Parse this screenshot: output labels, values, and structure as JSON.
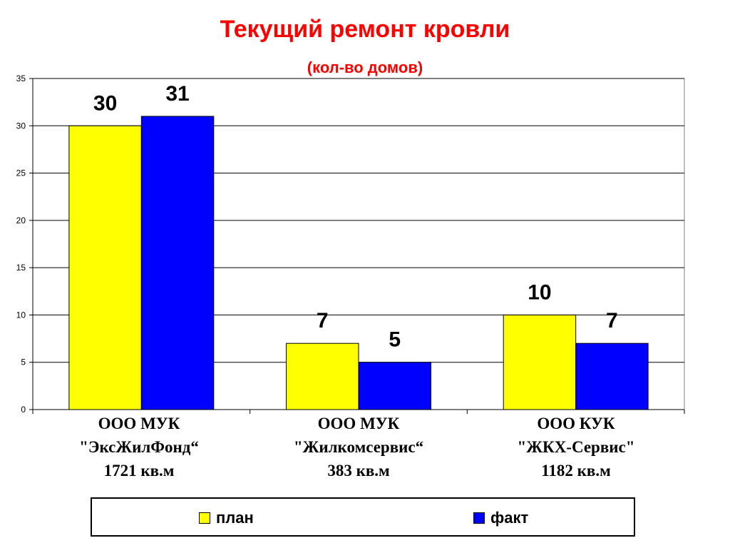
{
  "chart_data": {
    "type": "bar",
    "title": "Текущий ремонт кровли",
    "subtitle": "(кол-во домов)",
    "xlabel": "",
    "ylabel": "",
    "ylim": [
      0,
      35
    ],
    "yticks": [
      0,
      5,
      10,
      15,
      20,
      25,
      30,
      35
    ],
    "grid": true,
    "legend_position": "bottom",
    "categories": [
      {
        "lines": [
          "ООО МУК",
          "\"ЭксЖилФонд“",
          "1721 кв.м"
        ]
      },
      {
        "lines": [
          "ООО МУК",
          "\"Жилкомсервис“",
          "383 кв.м"
        ]
      },
      {
        "lines": [
          "ООО КУК",
          "\"ЖКХ-Сервис\"",
          "1182 кв.м"
        ]
      }
    ],
    "series": [
      {
        "name": "план",
        "color": "#ffff00",
        "values": [
          30,
          7,
          10
        ]
      },
      {
        "name": "факт",
        "color": "#0000ff",
        "values": [
          31,
          5,
          7
        ]
      }
    ]
  }
}
